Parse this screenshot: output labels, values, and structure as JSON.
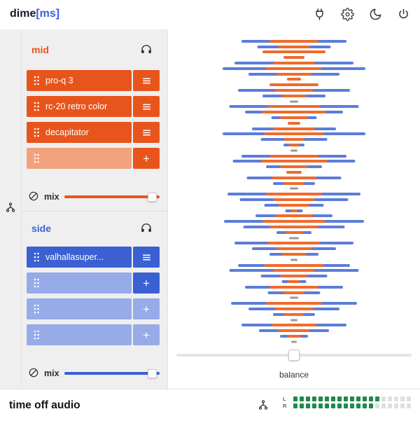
{
  "brand": {
    "prefix": "dime",
    "suffix": "[ms]"
  },
  "topbar": {
    "icons": [
      {
        "name": "plugin-icon"
      },
      {
        "name": "settings-icon"
      },
      {
        "name": "dark-mode-icon"
      },
      {
        "name": "power-icon"
      }
    ]
  },
  "mid": {
    "label": "mid",
    "slots": [
      {
        "label": "pro-q 3",
        "action": "menu"
      },
      {
        "label": "rc-20 retro color",
        "action": "menu"
      },
      {
        "label": "decapitator",
        "action": "menu"
      },
      {
        "label": "",
        "action": "add"
      }
    ],
    "mix_label": "mix",
    "mix_value": 0.97
  },
  "side": {
    "label": "side",
    "slots": [
      {
        "label": "valhallasuper...",
        "action": "menu"
      },
      {
        "label": "",
        "action": "add"
      },
      {
        "label": "",
        "action": "add"
      },
      {
        "label": "",
        "action": "add"
      }
    ],
    "mix_label": "mix",
    "mix_value": 0.97
  },
  "viz": {
    "description": "mid-side stereo width display, blue = side width, orange = mid level, centered bars",
    "rows": [
      [
        150,
        70
      ],
      [
        105,
        45
      ],
      [
        60,
        90
      ],
      [
        0,
        30
      ],
      [
        170,
        60
      ],
      [
        204,
        80
      ],
      [
        130,
        50
      ],
      [
        0,
        20
      ],
      [
        40,
        70
      ],
      [
        160,
        55
      ],
      [
        90,
        35
      ],
      [
        0,
        12
      ],
      [
        185,
        75
      ],
      [
        140,
        92
      ],
      [
        65,
        40
      ],
      [
        0,
        18
      ],
      [
        120,
        60
      ],
      [
        204,
        85
      ],
      [
        95,
        30
      ],
      [
        30,
        15
      ],
      [
        0,
        10
      ],
      [
        150,
        70
      ],
      [
        175,
        95
      ],
      [
        80,
        40
      ],
      [
        0,
        22
      ],
      [
        135,
        65
      ],
      [
        60,
        30
      ],
      [
        0,
        12
      ],
      [
        190,
        80
      ],
      [
        155,
        60
      ],
      [
        85,
        45
      ],
      [
        25,
        10
      ],
      [
        110,
        55
      ],
      [
        200,
        90
      ],
      [
        145,
        70
      ],
      [
        50,
        25
      ],
      [
        0,
        14
      ],
      [
        170,
        75
      ],
      [
        120,
        50
      ],
      [
        70,
        35
      ],
      [
        0,
        10
      ],
      [
        160,
        85
      ],
      [
        185,
        60
      ],
      [
        95,
        40
      ],
      [
        35,
        18
      ],
      [
        140,
        70
      ],
      [
        75,
        30
      ],
      [
        0,
        12
      ],
      [
        180,
        80
      ],
      [
        130,
        55
      ],
      [
        60,
        28
      ],
      [
        0,
        10
      ],
      [
        150,
        65
      ],
      [
        100,
        45
      ],
      [
        40,
        20
      ],
      [
        0,
        8
      ]
    ]
  },
  "balance": {
    "label": "balance",
    "value": 0.5
  },
  "bottom": {
    "title": "time off audio",
    "meter": {
      "l_label": "L",
      "r_label": "R",
      "total": 19,
      "l_on": 14,
      "r_on": 13
    }
  },
  "colors": {
    "orange": "#e8551c",
    "orange_light": "#f2a27d",
    "blue": "#3a60d2",
    "blue_light": "#96abe8",
    "viz_blue": "#5c7dd8",
    "viz_orange": "#ee6b2d",
    "green": "#1f8a4c",
    "brand_blue": "#3b5bdb"
  }
}
